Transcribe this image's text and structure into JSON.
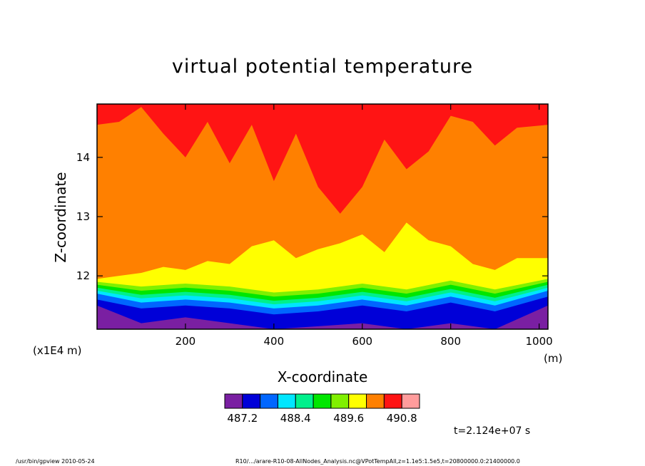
{
  "chart_data": {
    "type": "heatmap",
    "title": "virtual potential temperature",
    "xlabel": "X-coordinate",
    "ylabel": "Z-coordinate",
    "x_unit": "(m)",
    "y_unit": "(x1E4 m)",
    "xlim": [
      0,
      1020
    ],
    "ylim": [
      11.1,
      14.9
    ],
    "x_ticks": [
      200,
      400,
      600,
      800,
      1000
    ],
    "y_ticks": [
      12,
      13,
      14
    ],
    "x_tick_labels": [
      "200",
      "400",
      "600",
      "800",
      "1000"
    ],
    "y_tick_labels": [
      "12",
      "13",
      "14"
    ],
    "colorbar_labels": [
      "487.2",
      "488.4",
      "489.6",
      "490.8"
    ],
    "colorbar_label_indices": [
      1,
      4,
      7,
      10
    ],
    "levels_colors": [
      "#7a1fa2",
      "#0000d8",
      "#0066ff",
      "#00e6ff",
      "#00f08c",
      "#00e600",
      "#80f000",
      "#ffff00",
      "#ff8000",
      "#ff1414",
      "#ff9c9c"
    ],
    "time_label": "t=2.124e+07 s",
    "bands": [
      {
        "color": "#7a1fa2",
        "x": [
          0,
          100,
          200,
          300,
          400,
          500,
          600,
          700,
          800,
          900,
          1020
        ],
        "z_top": [
          11.5,
          11.2,
          11.3,
          11.2,
          11.1,
          11.15,
          11.2,
          11.1,
          11.2,
          11.1,
          11.5
        ]
      },
      {
        "color": "#0000d8",
        "x": [
          0,
          100,
          200,
          300,
          400,
          500,
          600,
          700,
          800,
          900,
          1020
        ],
        "z_top": [
          11.6,
          11.45,
          11.5,
          11.45,
          11.35,
          11.4,
          11.5,
          11.4,
          11.55,
          11.4,
          11.65
        ]
      },
      {
        "color": "#0066ff",
        "x": [
          0,
          100,
          200,
          300,
          400,
          500,
          600,
          700,
          800,
          900,
          1020
        ],
        "z_top": [
          11.7,
          11.55,
          11.6,
          11.55,
          11.45,
          11.5,
          11.6,
          11.5,
          11.65,
          11.5,
          11.75
        ]
      },
      {
        "color": "#00e6ff",
        "x": [
          0,
          100,
          200,
          300,
          400,
          500,
          600,
          700,
          800,
          900,
          1020
        ],
        "z_top": [
          11.75,
          11.62,
          11.67,
          11.62,
          11.52,
          11.57,
          11.67,
          11.57,
          11.72,
          11.57,
          11.8
        ]
      },
      {
        "color": "#00f08c",
        "x": [
          0,
          100,
          200,
          300,
          400,
          500,
          600,
          700,
          800,
          900,
          1020
        ],
        "z_top": [
          11.8,
          11.68,
          11.73,
          11.68,
          11.58,
          11.63,
          11.73,
          11.63,
          11.78,
          11.63,
          11.85
        ]
      },
      {
        "color": "#00e600",
        "x": [
          0,
          100,
          200,
          300,
          400,
          500,
          600,
          700,
          800,
          900,
          1020
        ],
        "z_top": [
          11.85,
          11.75,
          11.8,
          11.75,
          11.65,
          11.7,
          11.8,
          11.7,
          11.85,
          11.7,
          11.9
        ]
      },
      {
        "color": "#80f000",
        "x": [
          0,
          100,
          200,
          300,
          400,
          500,
          600,
          700,
          800,
          900,
          1020
        ],
        "z_top": [
          11.9,
          11.82,
          11.87,
          11.82,
          11.72,
          11.77,
          11.87,
          11.77,
          11.92,
          11.77,
          11.95
        ]
      },
      {
        "color": "#ffff00",
        "x": [
          0,
          50,
          100,
          150,
          200,
          250,
          300,
          350,
          400,
          450,
          500,
          550,
          600,
          650,
          700,
          750,
          800,
          850,
          900,
          950,
          1020
        ],
        "z_top": [
          11.95,
          12.0,
          12.05,
          12.15,
          12.1,
          12.25,
          12.2,
          12.5,
          12.6,
          12.3,
          12.45,
          12.55,
          12.7,
          12.4,
          12.9,
          12.6,
          12.5,
          12.2,
          12.1,
          12.3,
          12.3
        ]
      },
      {
        "color": "#ff8000",
        "x": [
          0,
          50,
          100,
          150,
          200,
          250,
          300,
          350,
          400,
          450,
          500,
          550,
          600,
          650,
          700,
          750,
          800,
          850,
          900,
          950,
          1020
        ],
        "z_top": [
          14.55,
          14.6,
          14.85,
          14.4,
          14.0,
          14.6,
          13.9,
          14.55,
          13.6,
          14.4,
          13.5,
          13.05,
          13.5,
          14.3,
          13.8,
          14.1,
          14.7,
          14.6,
          14.2,
          14.5,
          14.55
        ]
      },
      {
        "color": "#ff1414",
        "x": [
          0,
          1020
        ],
        "z_top": [
          14.9,
          14.9
        ]
      }
    ]
  },
  "footer": {
    "left": "/usr/bin/gpview  2010-05-24",
    "center": "R10/.../arare-R10-08-AllNodes_Analysis.nc@VPotTempAll,z=1.1e5:1.5e5,t=20800000.0:21400000.0"
  }
}
